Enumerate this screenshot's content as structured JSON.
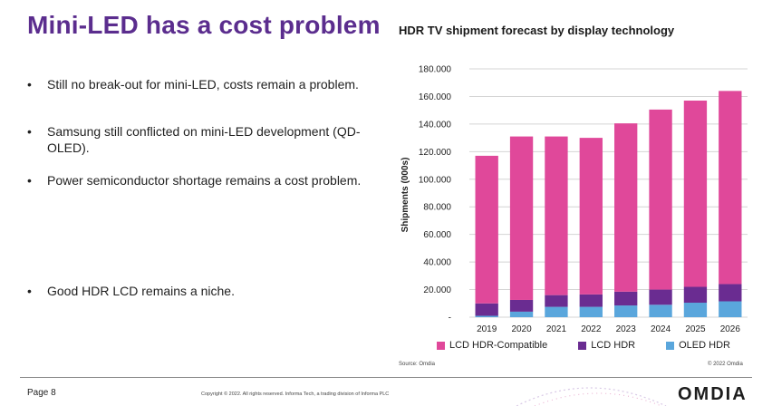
{
  "slide": {
    "title": "Mini-LED has a cost problem",
    "bullets": [
      "Still no break-out for mini-LED, costs remain a problem.",
      "Samsung still conflicted on mini-LED development (QD-OLED).",
      "Power semiconductor shortage remains a cost problem.",
      "Good HDR LCD remains a niche."
    ],
    "source": "Source: Omdia",
    "copyright_right": "© 2022 Omdia",
    "page_label": "Page 8",
    "footer_copyright": "Copyright © 2022. All rights reserved. Informa Tech, a trading division of Informa PLC",
    "logo": "OMDIA"
  },
  "colors": {
    "title": "#5b2d8e",
    "lcd_hdr_compatible": "#e0489a",
    "lcd_hdr": "#6a2c91",
    "oled_hdr": "#5aa6dc"
  },
  "chart_data": {
    "type": "bar",
    "stacked": true,
    "title": "HDR TV shipment forecast by display technology",
    "ylabel": "Shipments (000s)",
    "xlabel": "",
    "categories": [
      "2019",
      "2020",
      "2021",
      "2022",
      "2023",
      "2024",
      "2025",
      "2026"
    ],
    "series": [
      {
        "name": "LCD HDR-Compatible",
        "color": "#e0489a",
        "values": [
          107000,
          118500,
          115000,
          113500,
          122000,
          130500,
          135000,
          140000
        ]
      },
      {
        "name": "LCD HDR",
        "color": "#6a2c91",
        "values": [
          9000,
          8500,
          8500,
          9000,
          10000,
          11000,
          11500,
          12500
        ]
      },
      {
        "name": "OLED HDR",
        "color": "#5aa6dc",
        "values": [
          1000,
          4000,
          7500,
          7500,
          8500,
          9000,
          10500,
          11500
        ]
      }
    ],
    "stack_order_bottom_to_top": [
      "OLED HDR",
      "LCD HDR",
      "LCD HDR-Compatible"
    ],
    "ylim": [
      0,
      180000
    ],
    "yticks": [
      0,
      20000,
      40000,
      60000,
      80000,
      100000,
      120000,
      140000,
      160000,
      180000
    ],
    "ytick_labels": [
      "-",
      "20.000",
      "40.000",
      "60.000",
      "80.000",
      "100.000",
      "120.000",
      "140.000",
      "160.000",
      "180.000"
    ],
    "legend": "bottom",
    "grid": true
  }
}
